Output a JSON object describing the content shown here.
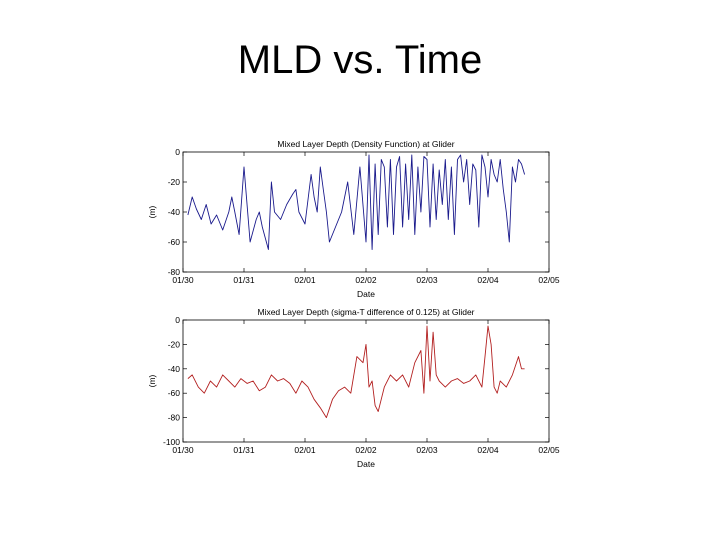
{
  "slide": {
    "title": "MLD vs. Time"
  },
  "chart_data": [
    {
      "type": "line",
      "title": "Mixed Layer Depth (Density Function) at Glider",
      "xlabel": "Date",
      "ylabel": "(m)",
      "x_ticks": [
        "01/30",
        "01/31",
        "02/01",
        "02/02",
        "02/03",
        "02/04",
        "02/05"
      ],
      "y_ticks": [
        0,
        -20,
        -40,
        -60,
        -80
      ],
      "xlim": [
        0,
        6
      ],
      "ylim": [
        -80,
        0
      ],
      "grid": false,
      "color": "#1a1a8c",
      "series": [
        {
          "x": [
            0.08,
            0.15,
            0.22,
            0.3,
            0.38,
            0.46,
            0.55,
            0.65,
            0.75,
            0.8,
            0.85,
            0.92,
            1.0,
            1.1,
            1.2,
            1.25,
            1.3,
            1.4,
            1.45,
            1.5,
            1.6,
            1.7,
            1.8,
            1.85,
            1.9,
            2.0,
            2.1,
            2.15,
            2.2,
            2.25,
            2.3,
            2.35,
            2.4,
            2.5,
            2.6,
            2.7,
            2.8,
            2.9,
            3.0,
            3.05,
            3.1,
            3.15,
            3.2,
            3.25,
            3.3,
            3.35,
            3.4,
            3.45,
            3.5,
            3.55,
            3.6,
            3.65,
            3.7,
            3.75,
            3.8,
            3.85,
            3.9,
            3.95,
            4.0,
            4.05,
            4.1,
            4.15,
            4.2,
            4.25,
            4.3,
            4.35,
            4.4,
            4.45,
            4.5,
            4.55,
            4.6,
            4.65,
            4.7,
            4.75,
            4.8,
            4.85,
            4.9,
            4.95,
            5.0,
            5.05,
            5.1,
            5.15,
            5.2,
            5.25,
            5.3,
            5.35,
            5.4,
            5.45,
            5.5,
            5.55,
            5.6
          ],
          "y": [
            -42,
            -30,
            -38,
            -45,
            -35,
            -48,
            -42,
            -52,
            -40,
            -30,
            -40,
            -55,
            -10,
            -60,
            -45,
            -40,
            -50,
            -65,
            -20,
            -40,
            -45,
            -35,
            -28,
            -25,
            -40,
            -48,
            -15,
            -30,
            -40,
            -10,
            -25,
            -40,
            -60,
            -50,
            -40,
            -20,
            -55,
            -10,
            -60,
            -2,
            -65,
            -8,
            -55,
            -5,
            -10,
            -50,
            -5,
            -55,
            -10,
            -3,
            -50,
            -8,
            -45,
            -2,
            -55,
            -10,
            -40,
            -3,
            -5,
            -50,
            -8,
            -45,
            -12,
            -35,
            -5,
            -45,
            -10,
            -55,
            -5,
            -2,
            -20,
            -5,
            -35,
            -8,
            -12,
            -50,
            -2,
            -10,
            -30,
            -5,
            -15,
            -20,
            -5,
            -25,
            -40,
            -60,
            -10,
            -20,
            -5,
            -8,
            -15
          ]
        }
      ]
    },
    {
      "type": "line",
      "title": "Mixed Layer Depth (sigma-T difference of 0.125) at Glider",
      "xlabel": "Date",
      "ylabel": "(m)",
      "x_ticks": [
        "01/30",
        "01/31",
        "02/01",
        "02/02",
        "02/03",
        "02/04",
        "02/05"
      ],
      "y_ticks": [
        0,
        -20,
        -40,
        -60,
        -80,
        -100
      ],
      "xlim": [
        0,
        6
      ],
      "ylim": [
        -100,
        0
      ],
      "grid": false,
      "color": "#b32020",
      "series": [
        {
          "x": [
            0.08,
            0.15,
            0.25,
            0.35,
            0.45,
            0.55,
            0.65,
            0.75,
            0.85,
            0.95,
            1.05,
            1.15,
            1.25,
            1.35,
            1.45,
            1.55,
            1.65,
            1.75,
            1.85,
            1.95,
            2.05,
            2.15,
            2.25,
            2.35,
            2.45,
            2.55,
            2.65,
            2.75,
            2.85,
            2.95,
            3.0,
            3.05,
            3.1,
            3.15,
            3.2,
            3.3,
            3.4,
            3.5,
            3.6,
            3.7,
            3.8,
            3.9,
            3.95,
            4.0,
            4.05,
            4.1,
            4.15,
            4.2,
            4.3,
            4.4,
            4.5,
            4.6,
            4.7,
            4.8,
            4.9,
            4.95,
            5.0,
            5.05,
            5.1,
            5.15,
            5.2,
            5.3,
            5.4,
            5.5,
            5.55,
            5.6
          ],
          "y": [
            -48,
            -45,
            -55,
            -60,
            -50,
            -55,
            -45,
            -50,
            -55,
            -48,
            -52,
            -50,
            -58,
            -55,
            -45,
            -50,
            -48,
            -52,
            -60,
            -50,
            -55,
            -65,
            -72,
            -80,
            -65,
            -58,
            -55,
            -60,
            -30,
            -35,
            -20,
            -55,
            -50,
            -70,
            -75,
            -55,
            -45,
            -50,
            -45,
            -55,
            -35,
            -25,
            -60,
            -5,
            -50,
            -10,
            -45,
            -50,
            -55,
            -50,
            -48,
            -52,
            -50,
            -45,
            -55,
            -30,
            -5,
            -20,
            -55,
            -60,
            -50,
            -55,
            -45,
            -30,
            -40,
            -40
          ]
        }
      ]
    }
  ]
}
